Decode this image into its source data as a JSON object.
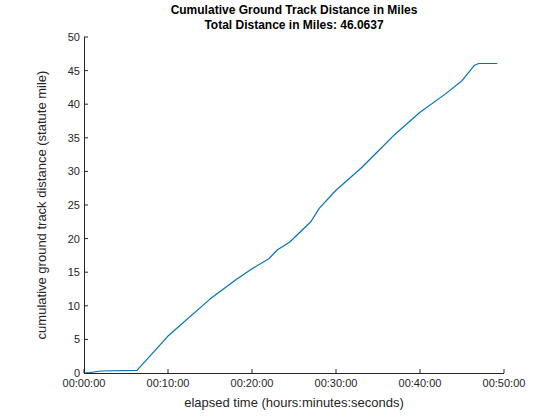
{
  "chart_data": {
    "type": "line",
    "title": "Cumulative Ground Track Distance in Miles",
    "subtitle": "Total Distance in Miles: 46.0637",
    "x_label": "elapsed time  (hours:minutes:seconds)",
    "y_label": "cumulative ground track distance (statute mile)",
    "x": [
      0.3,
      2,
      6.3,
      10,
      15,
      18,
      20,
      22,
      23,
      24.5,
      27,
      28,
      30,
      33,
      35,
      37,
      40,
      43,
      45,
      46.5,
      47,
      49.2
    ],
    "values": [
      0,
      0.3,
      0.4,
      5.5,
      11,
      13.8,
      15.5,
      17,
      18.3,
      19.5,
      22.5,
      24.5,
      27.2,
      30.5,
      33,
      35.5,
      38.8,
      41.5,
      43.5,
      45.8,
      46.06,
      46.06
    ],
    "color": "#0072bd",
    "xlim": [
      0,
      50
    ],
    "xticks": [
      {
        "value": 0,
        "label": "00:00:00"
      },
      {
        "value": 10,
        "label": "00:10:00"
      },
      {
        "value": 20,
        "label": "00:20:00"
      },
      {
        "value": 30,
        "label": "00:30:00"
      },
      {
        "value": 40,
        "label": "00:40:00"
      },
      {
        "value": 50,
        "label": "00:50:00"
      }
    ],
    "ylim": [
      0,
      50
    ],
    "yticks": [
      0,
      5,
      10,
      15,
      20,
      25,
      30,
      35,
      40,
      45,
      50
    ],
    "grid": false
  }
}
